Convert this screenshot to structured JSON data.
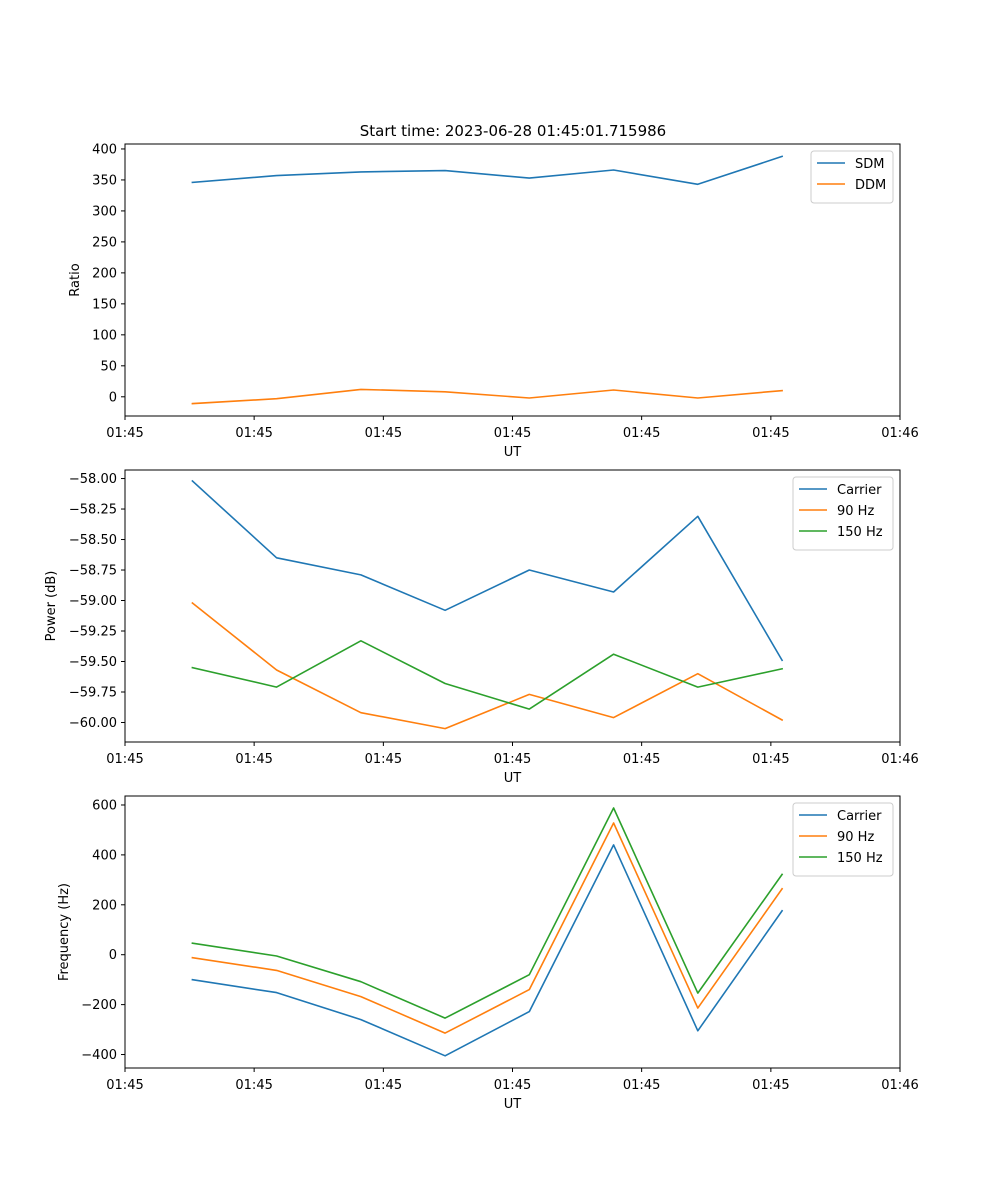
{
  "figure": {
    "title": "Start time: 2023-06-28 01:45:01.715986"
  },
  "colors": {
    "c0": "#1f77b4",
    "c1": "#ff7f0e",
    "c2": "#2ca02c"
  },
  "chart_data": [
    {
      "type": "line",
      "title": "Start time: 2023-06-28 01:45:01.715986",
      "xlabel": "UT",
      "ylabel": "Ratio",
      "x": [
        1,
        2,
        3,
        4,
        5,
        6,
        7,
        8
      ],
      "xlim": [
        0.2,
        9.4
      ],
      "xticks": [
        {
          "v": 0.2,
          "label": "01:45"
        },
        {
          "v": 1.733,
          "label": "01:45"
        },
        {
          "v": 3.267,
          "label": "01:45"
        },
        {
          "v": 4.8,
          "label": "01:45"
        },
        {
          "v": 6.333,
          "label": "01:45"
        },
        {
          "v": 7.867,
          "label": "01:45"
        },
        {
          "v": 9.4,
          "label": "01:46"
        }
      ],
      "ylim": [
        -31,
        408
      ],
      "yticks": [
        0,
        50,
        100,
        150,
        200,
        250,
        300,
        350,
        400
      ],
      "ytick_labels": [
        "0",
        "50",
        "100",
        "150",
        "200",
        "250",
        "300",
        "350",
        "400"
      ],
      "legend_position": "top-right",
      "series": [
        {
          "name": "SDM",
          "color": "#1f77b4",
          "values": [
            346,
            357,
            363,
            365,
            353,
            366,
            343,
            388
          ]
        },
        {
          "name": "DDM",
          "color": "#ff7f0e",
          "values": [
            -11,
            -3,
            12,
            8,
            -2,
            11,
            -2,
            10
          ]
        }
      ]
    },
    {
      "type": "line",
      "title": "",
      "xlabel": "UT",
      "ylabel": "Power (dB)",
      "x": [
        1,
        2,
        3,
        4,
        5,
        6,
        7,
        8
      ],
      "xlim": [
        0.2,
        9.4
      ],
      "xticks": [
        {
          "v": 0.2,
          "label": "01:45"
        },
        {
          "v": 1.733,
          "label": "01:45"
        },
        {
          "v": 3.267,
          "label": "01:45"
        },
        {
          "v": 4.8,
          "label": "01:45"
        },
        {
          "v": 6.333,
          "label": "01:45"
        },
        {
          "v": 7.867,
          "label": "01:45"
        },
        {
          "v": 9.4,
          "label": "01:46"
        }
      ],
      "ylim": [
        -60.16,
        -57.93
      ],
      "yticks": [
        -60.0,
        -59.75,
        -59.5,
        -59.25,
        -59.0,
        -58.75,
        -58.5,
        -58.25,
        -58.0
      ],
      "ytick_labels": [
        "−60.00",
        "−59.75",
        "−59.50",
        "−59.25",
        "−59.00",
        "−58.75",
        "−58.50",
        "−58.25",
        "−58.00"
      ],
      "legend_position": "top-right",
      "series": [
        {
          "name": "Carrier",
          "color": "#1f77b4",
          "values": [
            -58.02,
            -58.65,
            -58.79,
            -59.08,
            -58.75,
            -58.93,
            -58.31,
            -59.49
          ]
        },
        {
          "name": "90 Hz",
          "color": "#ff7f0e",
          "values": [
            -59.02,
            -59.57,
            -59.92,
            -60.05,
            -59.77,
            -59.96,
            -59.6,
            -59.98
          ]
        },
        {
          "name": "150 Hz",
          "color": "#2ca02c",
          "values": [
            -59.55,
            -59.71,
            -59.33,
            -59.68,
            -59.89,
            -59.44,
            -59.71,
            -59.56
          ]
        }
      ]
    },
    {
      "type": "line",
      "title": "",
      "xlabel": "UT",
      "ylabel": "Frequency (Hz)",
      "x": [
        1,
        2,
        3,
        4,
        5,
        6,
        7,
        8
      ],
      "xlim": [
        0.2,
        9.4
      ],
      "xticks": [
        {
          "v": 0.2,
          "label": "01:45"
        },
        {
          "v": 1.733,
          "label": "01:45"
        },
        {
          "v": 3.267,
          "label": "01:45"
        },
        {
          "v": 4.8,
          "label": "01:45"
        },
        {
          "v": 6.333,
          "label": "01:45"
        },
        {
          "v": 7.867,
          "label": "01:45"
        },
        {
          "v": 9.4,
          "label": "01:46"
        }
      ],
      "ylim": [
        -454,
        636
      ],
      "yticks": [
        -400,
        -200,
        0,
        200,
        400,
        600
      ],
      "ytick_labels": [
        "−400",
        "−200",
        "0",
        "200",
        "400",
        "600"
      ],
      "legend_position": "top-right",
      "series": [
        {
          "name": "Carrier",
          "color": "#1f77b4",
          "values": [
            -100,
            -152,
            -260,
            -405,
            -228,
            440,
            -305,
            176
          ]
        },
        {
          "name": "90 Hz",
          "color": "#ff7f0e",
          "values": [
            -12,
            -63,
            -168,
            -314,
            -140,
            528,
            -214,
            264
          ]
        },
        {
          "name": "150 Hz",
          "color": "#2ca02c",
          "values": [
            46,
            -5,
            -108,
            -254,
            -80,
            588,
            -154,
            322
          ]
        }
      ]
    }
  ]
}
